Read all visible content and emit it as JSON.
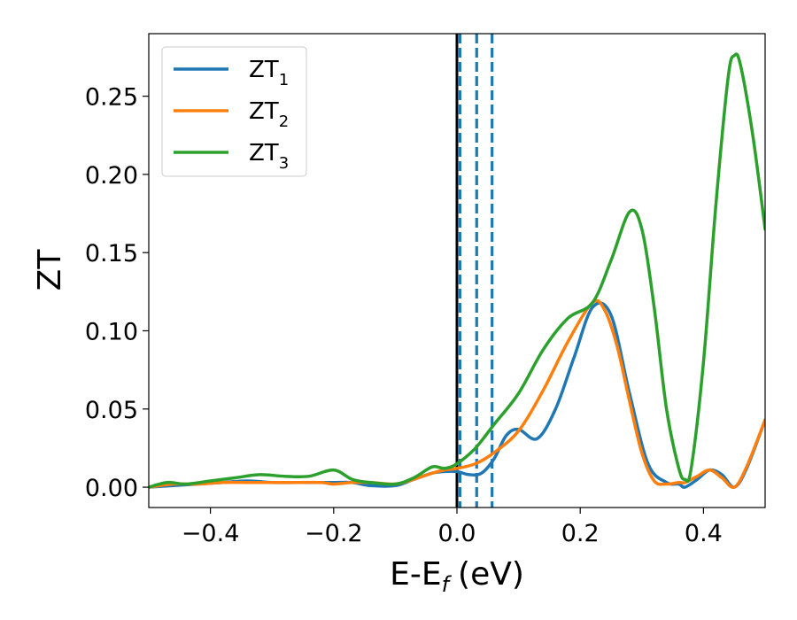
{
  "chart_data": {
    "type": "line",
    "xlabel": "E-E",
    "xlabel_sub": "f",
    "xlabel_unit": "(eV)",
    "ylabel": "ZT",
    "xlim": [
      -0.5,
      0.5
    ],
    "ylim": [
      -0.013,
      0.29
    ],
    "grid": false,
    "legend_position": "top-left",
    "x_ticks": [
      -0.4,
      -0.2,
      0.0,
      0.2,
      0.4
    ],
    "x_tick_labels": [
      "−0.4",
      "−0.2",
      "0.0",
      "0.2",
      "0.4"
    ],
    "y_ticks": [
      0.0,
      0.05,
      0.1,
      0.15,
      0.2,
      0.25
    ],
    "y_tick_labels": [
      "0.00",
      "0.05",
      "0.10",
      "0.15",
      "0.20",
      "0.25"
    ],
    "vertical_lines": [
      {
        "x": 0.0,
        "style": "solid",
        "color": "#000000"
      },
      {
        "x": 0.005,
        "style": "dashed",
        "color": "#1f77b4"
      },
      {
        "x": 0.032,
        "style": "dashed",
        "color": "#1f77b4"
      },
      {
        "x": 0.057,
        "style": "dashed",
        "color": "#1f77b4"
      }
    ],
    "series": [
      {
        "name": "ZT",
        "subscript": "1",
        "color": "#1f77b4",
        "x": [
          -0.5,
          -0.46,
          -0.42,
          -0.38,
          -0.34,
          -0.3,
          -0.26,
          -0.22,
          -0.2,
          -0.17,
          -0.14,
          -0.1,
          -0.07,
          -0.04,
          -0.02,
          0.0,
          0.02,
          0.04,
          0.06,
          0.08,
          0.1,
          0.13,
          0.16,
          0.19,
          0.22,
          0.25,
          0.28,
          0.31,
          0.34,
          0.36,
          0.37,
          0.39,
          0.41,
          0.43,
          0.45,
          0.47,
          0.5
        ],
        "values": [
          0.0,
          0.001,
          0.002,
          0.003,
          0.004,
          0.003,
          0.003,
          0.003,
          0.003,
          0.003,
          0.001,
          0.001,
          0.005,
          0.009,
          0.01,
          0.01,
          0.008,
          0.009,
          0.018,
          0.033,
          0.037,
          0.031,
          0.05,
          0.083,
          0.115,
          0.11,
          0.06,
          0.015,
          0.003,
          0.002,
          0.0,
          0.005,
          0.011,
          0.008,
          0.0,
          0.012,
          0.043
        ]
      },
      {
        "name": "ZT",
        "subscript": "2",
        "color": "#ff7f0e",
        "x": [
          -0.5,
          -0.46,
          -0.42,
          -0.38,
          -0.34,
          -0.3,
          -0.26,
          -0.22,
          -0.2,
          -0.17,
          -0.14,
          -0.1,
          -0.07,
          -0.04,
          -0.02,
          0.0,
          0.03,
          0.06,
          0.1,
          0.14,
          0.18,
          0.22,
          0.24,
          0.26,
          0.28,
          0.3,
          0.32,
          0.34,
          0.36,
          0.37,
          0.39,
          0.41,
          0.43,
          0.45,
          0.47,
          0.5
        ],
        "values": [
          0.0,
          0.002,
          0.002,
          0.003,
          0.003,
          0.003,
          0.003,
          0.003,
          0.002,
          0.003,
          0.003,
          0.002,
          0.005,
          0.009,
          0.011,
          0.012,
          0.015,
          0.022,
          0.036,
          0.062,
          0.093,
          0.118,
          0.113,
          0.09,
          0.055,
          0.022,
          0.004,
          0.002,
          0.003,
          0.003,
          0.007,
          0.011,
          0.006,
          0.0,
          0.013,
          0.043
        ]
      },
      {
        "name": "ZT",
        "subscript": "3",
        "color": "#2ca02c",
        "x": [
          -0.5,
          -0.47,
          -0.44,
          -0.4,
          -0.36,
          -0.32,
          -0.28,
          -0.24,
          -0.2,
          -0.17,
          -0.14,
          -0.1,
          -0.07,
          -0.04,
          -0.02,
          0.0,
          0.03,
          0.06,
          0.1,
          0.14,
          0.18,
          0.22,
          0.25,
          0.28,
          0.3,
          0.32,
          0.34,
          0.36,
          0.37,
          0.38,
          0.4,
          0.42,
          0.44,
          0.45,
          0.46,
          0.48,
          0.5
        ],
        "values": [
          0.0,
          0.003,
          0.002,
          0.004,
          0.006,
          0.008,
          0.007,
          0.007,
          0.011,
          0.005,
          0.003,
          0.002,
          0.006,
          0.013,
          0.012,
          0.015,
          0.025,
          0.04,
          0.06,
          0.088,
          0.108,
          0.118,
          0.145,
          0.176,
          0.165,
          0.115,
          0.05,
          0.012,
          0.005,
          0.012,
          0.08,
          0.18,
          0.262,
          0.276,
          0.27,
          0.225,
          0.165
        ]
      }
    ]
  }
}
